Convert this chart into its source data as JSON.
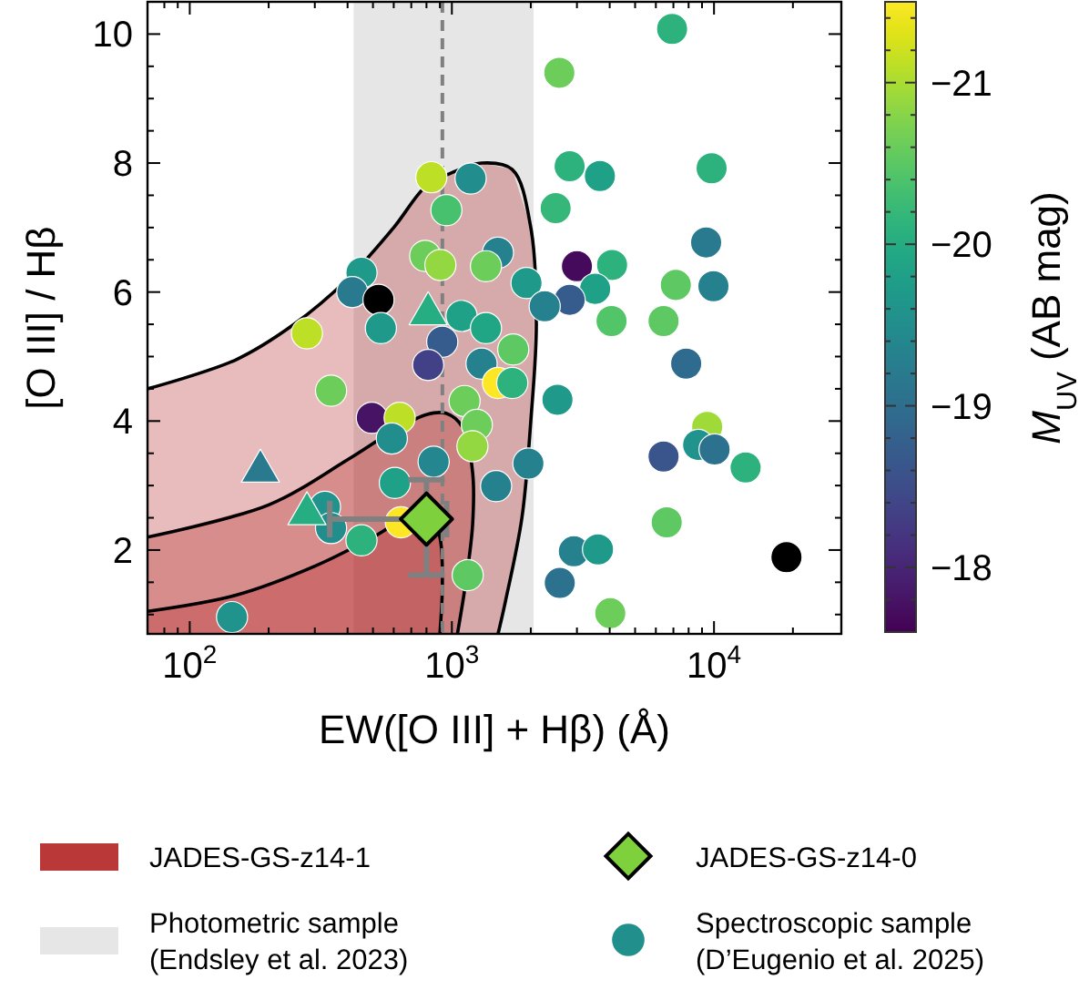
{
  "chart_data": {
    "type": "scatter",
    "xlabel": "EW([O III] + Hβ) (Å)",
    "ylabel": "[O III] / Hβ",
    "clabel": "M$_{UV}$ (AB mag)",
    "log": "x",
    "grid": false,
    "legend": "bottom",
    "xlim": [
      69,
      30600
    ],
    "ylim": [
      0.7,
      10.5
    ],
    "clim": [
      -17.6,
      -21.5
    ],
    "xticks": [
      {
        "value": 80,
        "label": null
      },
      {
        "value": 90,
        "label": null
      },
      {
        "value": 100,
        "label": "10$^{2}$"
      },
      {
        "value": 200,
        "label": null
      },
      {
        "value": 300,
        "label": null
      },
      {
        "value": 400,
        "label": null
      },
      {
        "value": 500,
        "label": null
      },
      {
        "value": 600,
        "label": null
      },
      {
        "value": 700,
        "label": null
      },
      {
        "value": 800,
        "label": null
      },
      {
        "value": 900,
        "label": null
      },
      {
        "value": 1000,
        "label": "10$^{3}$"
      },
      {
        "value": 2000,
        "label": null
      },
      {
        "value": 3000,
        "label": null
      },
      {
        "value": 4000,
        "label": null
      },
      {
        "value": 5000,
        "label": null
      },
      {
        "value": 6000,
        "label": null
      },
      {
        "value": 7000,
        "label": null
      },
      {
        "value": 8000,
        "label": null
      },
      {
        "value": 9000,
        "label": null
      },
      {
        "value": 10000,
        "label": "10$^{4}$"
      },
      {
        "value": 20000,
        "label": null
      }
    ],
    "yticks": [
      {
        "value": 1,
        "label": null
      },
      {
        "value": 1.5,
        "label": null
      },
      2,
      {
        "value": 2.5,
        "label": null
      },
      {
        "value": 3,
        "label": null
      },
      {
        "value": 3.5,
        "label": null
      },
      4,
      {
        "value": 4.5,
        "label": null
      },
      {
        "value": 5,
        "label": null
      },
      {
        "value": 5.5,
        "label": null
      },
      6,
      {
        "value": 6.5,
        "label": null
      },
      {
        "value": 7,
        "label": null
      },
      {
        "value": 7.5,
        "label": null
      },
      8,
      {
        "value": 8.5,
        "label": null
      },
      {
        "value": 9,
        "label": null
      },
      {
        "value": 9.5,
        "label": null
      },
      10
    ],
    "cticks": [
      {
        "value": -21.4,
        "label": null
      },
      {
        "value": -21.2,
        "label": null
      },
      {
        "value": -21,
        "label": "−21"
      },
      {
        "value": -20.8,
        "label": null
      },
      {
        "value": -20.6,
        "label": null
      },
      {
        "value": -20.4,
        "label": null
      },
      {
        "value": -20.2,
        "label": null
      },
      {
        "value": -20,
        "label": "−20"
      },
      {
        "value": -19.8,
        "label": null
      },
      {
        "value": -19.6,
        "label": null
      },
      {
        "value": -19.4,
        "label": null
      },
      {
        "value": -19.2,
        "label": null
      },
      {
        "value": -19,
        "label": "−19"
      },
      {
        "value": -18.8,
        "label": null
      },
      {
        "value": -18.6,
        "label": null
      },
      {
        "value": -18.4,
        "label": null
      },
      {
        "value": -18.2,
        "label": null
      },
      {
        "value": -18,
        "label": "−18"
      },
      {
        "value": -17.8,
        "label": null
      }
    ],
    "bands": [
      {
        "axis": "x",
        "from": 422,
        "to": 2050,
        "label": "Photometric sample\n(Endsley et al. 2023)",
        "color": "#e6e6e6"
      }
    ],
    "ref_lines": [
      {
        "axis": "x",
        "value": 920,
        "color": "#808080",
        "line_style": "dashed"
      }
    ],
    "series": [
      {
        "name": "JADES-GS-z14-1",
        "type": "area",
        "color": "#b22222",
        "x": [
          69,
          150,
          250,
          400,
          600,
          800,
          1000,
          1300,
          1700,
          2000,
          2100,
          2000,
          1850,
          1600,
          1500
        ],
        "values": [
          4.5,
          4.95,
          5.5,
          6.2,
          7.0,
          7.65,
          7.85,
          8.0,
          7.9,
          7.0,
          5.5,
          4.0,
          2.5,
          1.2,
          0.7
        ]
      },
      {
        "type": "area",
        "color": "#b22222",
        "x": [
          69,
          200,
          400,
          600,
          800,
          950,
          1100,
          1200,
          1200,
          1130,
          1050
        ],
        "values": [
          2.2,
          2.7,
          3.4,
          3.85,
          4.1,
          4.12,
          3.9,
          3.2,
          2.4,
          1.5,
          0.7
        ]
      },
      {
        "type": "area",
        "color": "#b22222",
        "x": [
          69,
          150,
          300,
          500,
          700,
          820,
          900,
          920,
          900
        ],
        "values": [
          1.05,
          1.3,
          1.75,
          2.2,
          2.55,
          2.6,
          2.2,
          1.5,
          0.7
        ]
      },
      {
        "name": "Spectroscopic sample\n(D’Eugenio et al. 2025)",
        "marker": "circle",
        "color": "#21908d",
        "x": [
          835,
          1179,
          953,
          791,
          904,
          452,
          417,
          525,
          536,
          1089,
          919,
          1349,
          280,
          812,
          1298,
          1499,
          1349,
          346,
          495,
          632,
          590,
          1118,
          1245,
          1198,
          1499,
          852,
          606,
          328,
          346,
          639,
          452,
          1475,
          1149,
          145,
          6920,
          2570,
          2813,
          3670,
          9790,
          2488,
          9330,
          3000,
          4085,
          1926,
          3520,
          2813,
          2260,
          7150,
          9950,
          4065,
          6420,
          7830,
          1714,
          1700,
          2528,
          9420,
          8700,
          10050,
          6420,
          13200,
          1958,
          6600,
          2920,
          3610,
          18900,
          2580,
          4020
        ],
        "values": [
          7.78,
          7.76,
          7.27,
          6.56,
          6.42,
          6.3,
          6.0,
          5.88,
          5.44,
          5.63,
          5.23,
          5.44,
          5.36,
          4.87,
          4.89,
          6.61,
          6.4,
          4.47,
          4.05,
          4.05,
          3.73,
          4.31,
          3.94,
          3.61,
          4.59,
          3.37,
          3.04,
          2.67,
          2.34,
          2.43,
          2.15,
          2.99,
          1.61,
          0.96,
          10.08,
          9.4,
          7.95,
          7.8,
          7.92,
          7.3,
          6.77,
          6.4,
          6.42,
          6.14,
          6.05,
          5.88,
          5.78,
          6.11,
          6.09,
          5.55,
          5.55,
          4.89,
          5.11,
          4.59,
          4.33,
          3.91,
          3.63,
          3.56,
          3.45,
          3.28,
          3.34,
          2.43,
          1.98,
          2.01,
          1.89,
          1.49,
          1.02
        ],
        "colors": [
          "#bddf26",
          "#228d8d",
          "#48c16e",
          "#6ccd5a",
          "#93d741",
          "#1f9a8a",
          "#297a8e",
          "#000000",
          "#1f9a8a",
          "#1fa187",
          "#365c8d",
          "#21a685",
          "#bddf26",
          "#424086",
          "#26818e",
          "#26818e",
          "#6ccd5a",
          "#6ccd5a",
          "#471365",
          "#bddf26",
          "#228d8d",
          "#6ccd5a",
          "#6ccd5a",
          "#93d741",
          "#fde725",
          "#24868e",
          "#1fa187",
          "#20938c",
          "#228d8d",
          "#fde725",
          "#2db27d",
          "#26818e",
          "#5ec962",
          "#20938c",
          "#2db27d",
          "#6ccd5a",
          "#2db27d",
          "#1fa187",
          "#2db27d",
          "#35b779",
          "#297a8e",
          "#460a5d",
          "#2db27d",
          "#1f9a8a",
          "#1fa187",
          "#365c8d",
          "#26818e",
          "#5ec962",
          "#26818e",
          "#52c569",
          "#5ec962",
          "#2f6b8e",
          "#5ec962",
          "#2db27d",
          "#1f9a8a",
          "#a0da39",
          "#20938c",
          "#2c728e",
          "#3a548c",
          "#2db27d",
          "#26818e",
          "#5ec962",
          "#26818e",
          "#1f9a8a",
          "#000000",
          "#2c728e",
          "#6ccd5a"
        ]
      },
      {
        "marker": "triangle",
        "x": [
          812,
          186,
          280
        ],
        "values": [
          5.72,
          3.28,
          2.62
        ],
        "colors": [
          "#26ad81",
          "#297a8e",
          "#26ad81"
        ]
      },
      {
        "name": "JADES-GS-z14-0",
        "marker": "diamond",
        "color": "#7ed13c",
        "x": [
          800
        ],
        "values": [
          2.48
        ],
        "errors": [
          [
            1.61,
            3.09
          ]
        ],
        "xerrors": [
          [
            342,
            955
          ]
        ]
      }
    ]
  }
}
